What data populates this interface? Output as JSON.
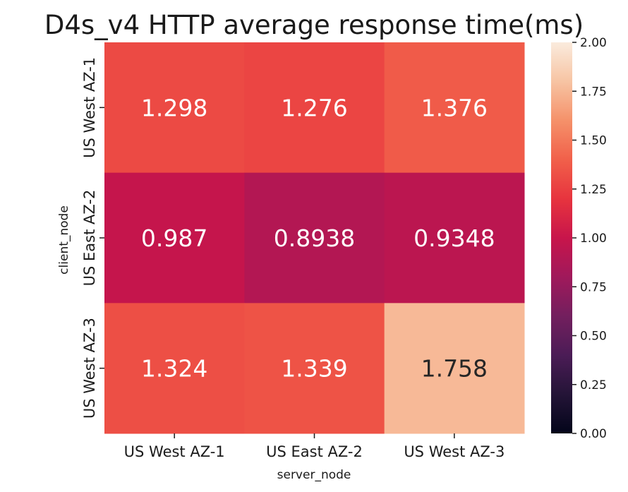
{
  "chart_data": {
    "type": "heatmap",
    "title": "D4s_v4 HTTP average response time(ms)",
    "xlabel": "server_node",
    "ylabel": "client_node",
    "x_categories": [
      "US West AZ-1",
      "US East AZ-2",
      "US West AZ-3"
    ],
    "y_categories": [
      "US West AZ-1",
      "US East AZ-2",
      "US West AZ-3"
    ],
    "values": [
      [
        1.298,
        1.276,
        1.376
      ],
      [
        0.987,
        0.8938,
        0.9348
      ],
      [
        1.324,
        1.339,
        1.758
      ]
    ],
    "value_labels": [
      [
        "1.298",
        "1.276",
        "1.376"
      ],
      [
        "0.987",
        "0.8938",
        "0.9348"
      ],
      [
        "1.324",
        "1.339",
        "1.758"
      ]
    ],
    "colorbar": {
      "range": [
        0,
        2
      ],
      "ticks": [
        "0.00",
        "0.25",
        "0.50",
        "0.75",
        "1.00",
        "1.25",
        "1.50",
        "1.75",
        "2.00"
      ],
      "colormap": "rocket"
    }
  }
}
